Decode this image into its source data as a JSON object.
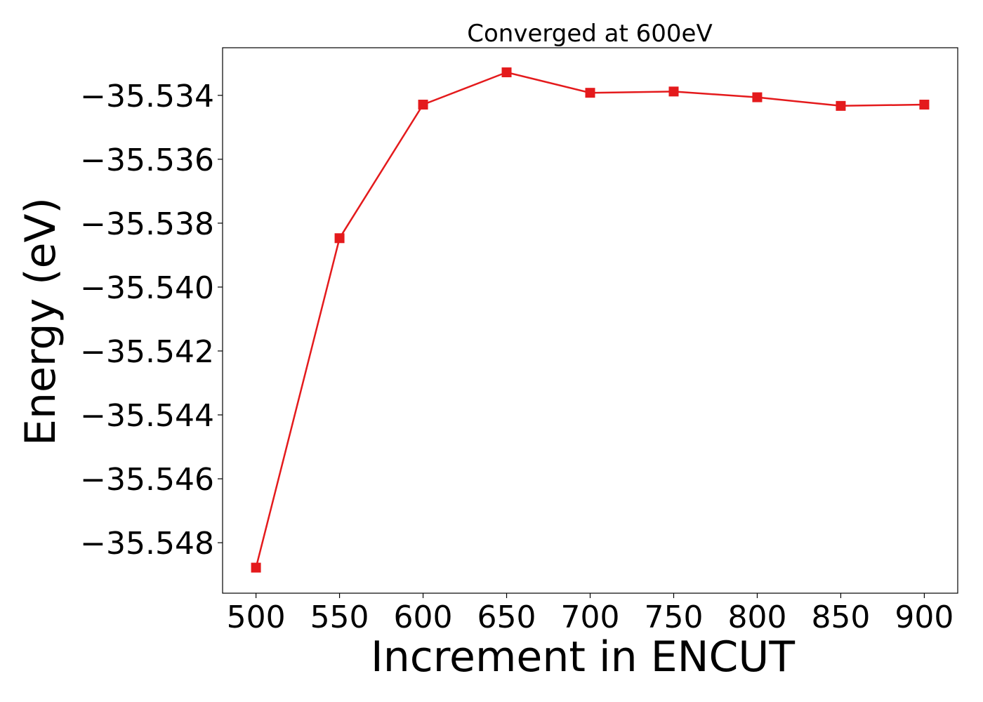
{
  "chart_data": {
    "type": "line",
    "title": "Converged at 600eV",
    "xlabel": "Increment in ENCUT",
    "ylabel": "Energy (eV)",
    "x": [
      500,
      550,
      600,
      650,
      700,
      750,
      800,
      850,
      900
    ],
    "series": [
      {
        "values": [
          -35.54878,
          -35.53847,
          -35.53429,
          -35.53328,
          -35.53392,
          -35.53388,
          -35.53406,
          -35.53433,
          -35.53429
        ],
        "color": "#e41a1c",
        "marker": "square"
      }
    ],
    "xlim": [
      480,
      920
    ],
    "ylim": [
      -35.54958,
      -35.53251
    ],
    "xticks": [
      500,
      550,
      600,
      650,
      700,
      750,
      800,
      850,
      900
    ],
    "xtick_labels": [
      "500",
      "550",
      "600",
      "650",
      "700",
      "750",
      "800",
      "850",
      "900"
    ],
    "yticks": [
      -35.548,
      -35.546,
      -35.544,
      -35.542,
      -35.54,
      -35.538,
      -35.536,
      -35.534
    ],
    "ytick_labels": [
      "−35.548",
      "−35.546",
      "−35.544",
      "−35.542",
      "−35.540",
      "−35.538",
      "−35.536",
      "−35.534"
    ],
    "grid": false,
    "legend": "none"
  }
}
